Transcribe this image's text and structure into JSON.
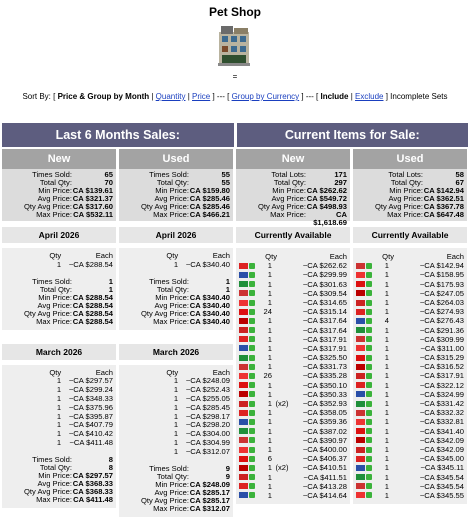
{
  "header": {
    "title": "Pet Shop",
    "mark": "="
  },
  "sort_bar": [
    {
      "text": "Sort By: [ ",
      "style": "plain"
    },
    {
      "text": "Price & Group by Month",
      "style": "bold"
    },
    {
      "text": " | ",
      "style": "plain"
    },
    {
      "text": "Quantity",
      "style": "link"
    },
    {
      "text": " | ",
      "style": "plain"
    },
    {
      "text": "Price",
      "style": "link"
    },
    {
      "text": " ] --- [ ",
      "style": "plain"
    },
    {
      "text": "Group by Currency",
      "style": "link"
    },
    {
      "text": " ] --- [ ",
      "style": "plain"
    },
    {
      "text": "Include",
      "style": "bold"
    },
    {
      "text": " | ",
      "style": "plain"
    },
    {
      "text": "Exclude",
      "style": "link"
    },
    {
      "text": " ] Incomplete Sets",
      "style": "plain"
    }
  ],
  "sections": [
    {
      "title": "Last 6 Months Sales:",
      "columns": [
        {
          "title": "New",
          "summary": [
            {
              "label": "Times Sold:",
              "value": "65"
            },
            {
              "label": "Total Qty:",
              "value": "70"
            },
            {
              "label": "Min Price:",
              "value": "CA $139.61"
            },
            {
              "label": "Avg Price:",
              "value": "CA $321.37"
            },
            {
              "label": "Qty Avg Price:",
              "value": "CA $317.60"
            },
            {
              "label": "Max Price:",
              "value": "CA $532.11"
            }
          ],
          "groups": [
            {
              "title": "April 2026",
              "headers": [
                "Qty",
                "Each"
              ],
              "rows": [
                {
                  "qty": "1",
                  "price": "~CA $288.54"
                }
              ],
              "summary": [
                {
                  "label": "Times Sold:",
                  "value": "1"
                },
                {
                  "label": "Total Qty:",
                  "value": "1"
                },
                {
                  "label": "Min Price:",
                  "value": "CA $288.54"
                },
                {
                  "label": "Avg Price:",
                  "value": "CA $288.54"
                },
                {
                  "label": "Qty Avg Price:",
                  "value": "CA $288.54"
                },
                {
                  "label": "Max Price:",
                  "value": "CA $288.54"
                }
              ]
            },
            {
              "title": "March 2026",
              "headers": [
                "Qty",
                "Each"
              ],
              "rows": [
                {
                  "qty": "1",
                  "price": "~CA $297.57"
                },
                {
                  "qty": "1",
                  "price": "~CA $299.24"
                },
                {
                  "qty": "1",
                  "price": "~CA $348.33"
                },
                {
                  "qty": "1",
                  "price": "~CA $375.96"
                },
                {
                  "qty": "1",
                  "price": "~CA $395.87"
                },
                {
                  "qty": "1",
                  "price": "~CA $407.79"
                },
                {
                  "qty": "1",
                  "price": "~CA $410.42"
                },
                {
                  "qty": "1",
                  "price": "~CA $411.48"
                }
              ],
              "summary": [
                {
                  "label": "Times Sold:",
                  "value": "8"
                },
                {
                  "label": "Total Qty:",
                  "value": "8"
                },
                {
                  "label": "Min Price:",
                  "value": "CA $297.57"
                },
                {
                  "label": "Avg Price:",
                  "value": "CA $368.33"
                },
                {
                  "label": "Qty Avg Price:",
                  "value": "CA $368.33"
                },
                {
                  "label": "Max Price:",
                  "value": "CA $411.48"
                }
              ]
            }
          ]
        },
        {
          "title": "Used",
          "summary": [
            {
              "label": "Times Sold:",
              "value": "55"
            },
            {
              "label": "Total Qty:",
              "value": "55"
            },
            {
              "label": "Min Price:",
              "value": "CA $159.80"
            },
            {
              "label": "Avg Price:",
              "value": "CA $285.46"
            },
            {
              "label": "Qty Avg Price:",
              "value": "CA $285.46"
            },
            {
              "label": "Max Price:",
              "value": "CA $466.21"
            }
          ],
          "groups": [
            {
              "title": "April 2026",
              "headers": [
                "Qty",
                "Each"
              ],
              "rows": [
                {
                  "qty": "1",
                  "price": "~CA $340.40"
                }
              ],
              "summary": [
                {
                  "label": "Times Sold:",
                  "value": "1"
                },
                {
                  "label": "Total Qty:",
                  "value": "1"
                },
                {
                  "label": "Min Price:",
                  "value": "CA $340.40"
                },
                {
                  "label": "Avg Price:",
                  "value": "CA $340.40"
                },
                {
                  "label": "Qty Avg Price:",
                  "value": "CA $340.40"
                },
                {
                  "label": "Max Price:",
                  "value": "CA $340.40"
                }
              ]
            },
            {
              "title": "March 2026",
              "headers": [
                "Qty",
                "Each"
              ],
              "rows": [
                {
                  "qty": "1",
                  "price": "~CA $248.09"
                },
                {
                  "qty": "1",
                  "price": "~CA $252.43"
                },
                {
                  "qty": "1",
                  "price": "~CA $255.05"
                },
                {
                  "qty": "1",
                  "price": "~CA $285.45"
                },
                {
                  "qty": "1",
                  "price": "~CA $298.17"
                },
                {
                  "qty": "1",
                  "price": "~CA $298.20"
                },
                {
                  "qty": "1",
                  "price": "~CA $304.00"
                },
                {
                  "qty": "1",
                  "price": "~CA $304.99"
                },
                {
                  "qty": "1",
                  "price": "~CA $312.07"
                }
              ],
              "summary": [
                {
                  "label": "Times Sold:",
                  "value": "9"
                },
                {
                  "label": "Total Qty:",
                  "value": "9"
                },
                {
                  "label": "Min Price:",
                  "value": "CA $248.09"
                },
                {
                  "label": "Avg Price:",
                  "value": "CA $285.17"
                },
                {
                  "label": "Qty Avg Price:",
                  "value": "CA $285.17"
                },
                {
                  "label": "Max Price:",
                  "value": "CA $312.07"
                }
              ]
            }
          ]
        }
      ]
    },
    {
      "title": "Current Items for Sale:",
      "columns": [
        {
          "title": "New",
          "summary": [
            {
              "label": "Total Lots:",
              "value": "171"
            },
            {
              "label": "Total Qty:",
              "value": "297"
            },
            {
              "label": "Min Price:",
              "value": "CA $262.62"
            },
            {
              "label": "Avg Price:",
              "value": "CA $549.72"
            },
            {
              "label": "Qty Avg Price:",
              "value": "CA $498.93"
            },
            {
              "label": "Max Price:",
              "value": "CA $1,618.69"
            }
          ],
          "groups": [
            {
              "title": "Currently Available",
              "headers": [
                "Qty",
                "Each"
              ],
              "rows": [
                {
                  "qty": "1",
                  "price": "~CA $262.62"
                },
                {
                  "qty": "1",
                  "price": "~CA $299.99"
                },
                {
                  "qty": "1",
                  "price": "~CA $301.63"
                },
                {
                  "qty": "1",
                  "price": "~CA $309.54"
                },
                {
                  "qty": "1",
                  "price": "~CA $314.65"
                },
                {
                  "qty": "24",
                  "price": "~CA $315.14"
                },
                {
                  "qty": "1",
                  "price": "~CA $317.64"
                },
                {
                  "qty": "1",
                  "price": "~CA $317.64"
                },
                {
                  "qty": "1",
                  "price": "~CA $317.91"
                },
                {
                  "qty": "1",
                  "price": "~CA $317.91"
                },
                {
                  "qty": "1",
                  "price": "~CA $325.50"
                },
                {
                  "qty": "1",
                  "price": "~CA $331.73"
                },
                {
                  "qty": "26",
                  "price": "~CA $335.28"
                },
                {
                  "qty": "1",
                  "price": "~CA $350.10"
                },
                {
                  "qty": "1",
                  "price": "~CA $350.33"
                },
                {
                  "qty": "1",
                  "note": "(x2)",
                  "price": "~CA $352.93"
                },
                {
                  "qty": "1",
                  "price": "~CA $358.05"
                },
                {
                  "qty": "1",
                  "price": "~CA $359.36"
                },
                {
                  "qty": "1",
                  "price": "~CA $387.02"
                },
                {
                  "qty": "1",
                  "price": "~CA $390.97"
                },
                {
                  "qty": "1",
                  "price": "~CA $400.00"
                },
                {
                  "qty": "6",
                  "price": "~CA $406.37"
                },
                {
                  "qty": "1",
                  "note": "(x2)",
                  "price": "~CA $410.51"
                },
                {
                  "qty": "1",
                  "price": "~CA $411.51"
                },
                {
                  "qty": "1",
                  "price": "~CA $413.28"
                },
                {
                  "qty": "1",
                  "price": "~CA $414.64"
                }
              ]
            }
          ]
        },
        {
          "title": "Used",
          "summary": [
            {
              "label": "Total Lots:",
              "value": "58"
            },
            {
              "label": "Total Qty:",
              "value": "67"
            },
            {
              "label": "Min Price:",
              "value": "CA $142.94"
            },
            {
              "label": "Avg Price:",
              "value": "CA $362.51"
            },
            {
              "label": "Qty Avg Price:",
              "value": "CA $367.78"
            },
            {
              "label": "Max Price:",
              "value": "CA $647.48"
            }
          ],
          "groups": [
            {
              "title": "Currently Available",
              "headers": [
                "Qty",
                "Each"
              ],
              "rows": [
                {
                  "qty": "1",
                  "price": "~CA $142.94"
                },
                {
                  "qty": "1",
                  "price": "~CA $158.95"
                },
                {
                  "qty": "1",
                  "price": "~CA $175.93"
                },
                {
                  "qty": "1",
                  "price": "~CA $247.05"
                },
                {
                  "qty": "1",
                  "price": "~CA $264.03"
                },
                {
                  "qty": "1",
                  "price": "~CA $274.93"
                },
                {
                  "qty": "4",
                  "price": "~CA $276.43"
                },
                {
                  "qty": "1",
                  "price": "~CA $291.36"
                },
                {
                  "qty": "1",
                  "price": "~CA $309.99"
                },
                {
                  "qty": "1",
                  "price": "~CA $311.00"
                },
                {
                  "qty": "1",
                  "price": "~CA $315.29"
                },
                {
                  "qty": "1",
                  "price": "~CA $316.52"
                },
                {
                  "qty": "1",
                  "price": "~CA $317.91"
                },
                {
                  "qty": "1",
                  "price": "~CA $322.12"
                },
                {
                  "qty": "1",
                  "price": "~CA $324.99"
                },
                {
                  "qty": "1",
                  "price": "~CA $331.42"
                },
                {
                  "qty": "1",
                  "price": "~CA $332.32"
                },
                {
                  "qty": "1",
                  "price": "~CA $332.81"
                },
                {
                  "qty": "1",
                  "price": "~CA $341.40"
                },
                {
                  "qty": "1",
                  "price": "~CA $342.09"
                },
                {
                  "qty": "1",
                  "price": "~CA $342.09"
                },
                {
                  "qty": "1",
                  "price": "~CA $345.00"
                },
                {
                  "qty": "1",
                  "price": "~CA $345.11"
                },
                {
                  "qty": "1",
                  "price": "~CA $345.54"
                },
                {
                  "qty": "1",
                  "price": "~CA $345.54"
                },
                {
                  "qty": "1",
                  "price": "~CA $345.55"
                }
              ]
            }
          ]
        }
      ]
    }
  ]
}
